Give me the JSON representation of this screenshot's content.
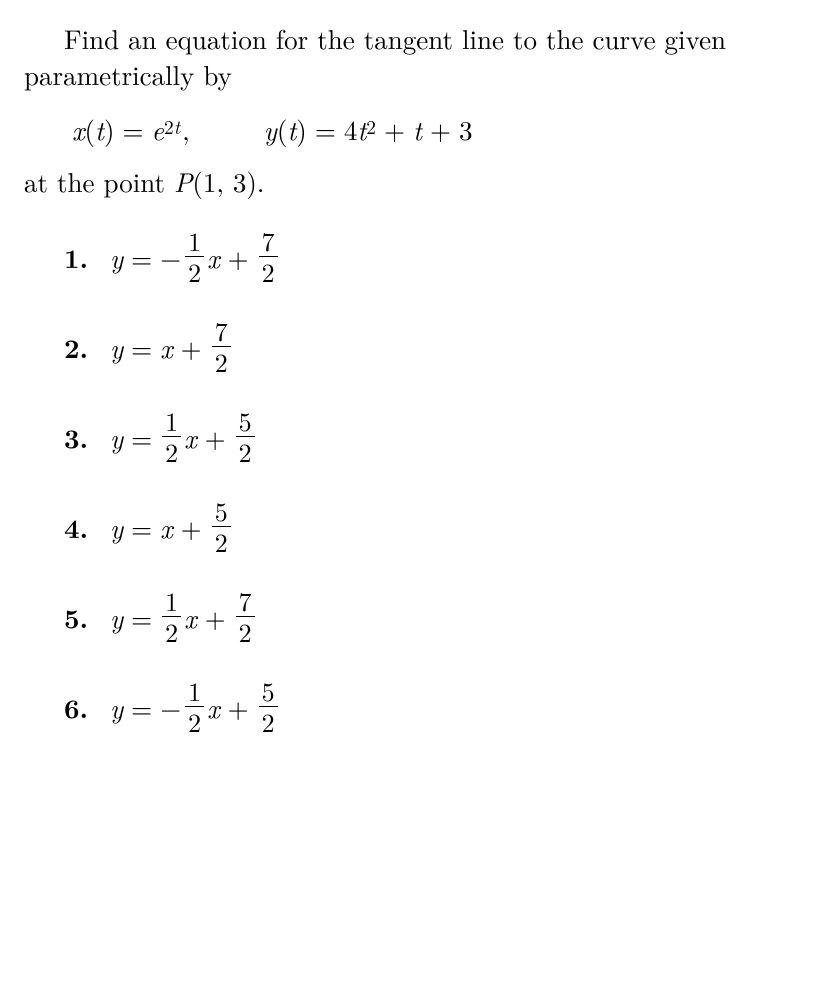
{
  "prompt": {
    "line_full": "Find an equation for the tangent line to the curve given parametrically by"
  },
  "equations": {
    "x_lhs_var": "x",
    "x_lhs_arg": "t",
    "eq": "=",
    "x_rhs_base": "e",
    "x_rhs_exp_coef": "2",
    "x_rhs_exp_var": "t",
    "comma": ",",
    "y_lhs_var": "y",
    "y_lhs_arg": "t",
    "y_rhs_coef1": "4",
    "y_rhs_var1": "t",
    "y_rhs_pow1": "2",
    "plus": "+",
    "y_rhs_var2": "t",
    "y_rhs_const": "3"
  },
  "atpoint": {
    "prefix": "at the point ",
    "P": "P",
    "open": "(",
    "a": "1",
    "sep": ", ",
    "b": "3",
    "close": ").",
    "_full": "at the point P(1, 3)."
  },
  "options": [
    {
      "n": "1.",
      "lhs": "y",
      "eq": "=",
      "sign": "−",
      "coef_num": "1",
      "coef_den": "2",
      "xvar": "x",
      "op": "+",
      "c_num": "7",
      "c_den": "2",
      "has_coef": true
    },
    {
      "n": "2.",
      "lhs": "y",
      "eq": "=",
      "sign": "",
      "xvar": "x",
      "op": "+",
      "c_num": "7",
      "c_den": "2",
      "has_coef": false
    },
    {
      "n": "3.",
      "lhs": "y",
      "eq": "=",
      "sign": "",
      "coef_num": "1",
      "coef_den": "2",
      "xvar": "x",
      "op": "+",
      "c_num": "5",
      "c_den": "2",
      "has_coef": true
    },
    {
      "n": "4.",
      "lhs": "y",
      "eq": "=",
      "sign": "",
      "xvar": "x",
      "op": "+",
      "c_num": "5",
      "c_den": "2",
      "has_coef": false
    },
    {
      "n": "5.",
      "lhs": "y",
      "eq": "=",
      "sign": "",
      "coef_num": "1",
      "coef_den": "2",
      "xvar": "x",
      "op": "+",
      "c_num": "7",
      "c_den": "2",
      "has_coef": true
    },
    {
      "n": "6.",
      "lhs": "y",
      "eq": "=",
      "sign": "−",
      "coef_num": "1",
      "coef_den": "2",
      "xvar": "x",
      "op": "+",
      "c_num": "5",
      "c_den": "2",
      "has_coef": true
    }
  ],
  "style": {
    "font_size_pt": 20,
    "text_color": "#000000",
    "background": "#ffffff"
  }
}
